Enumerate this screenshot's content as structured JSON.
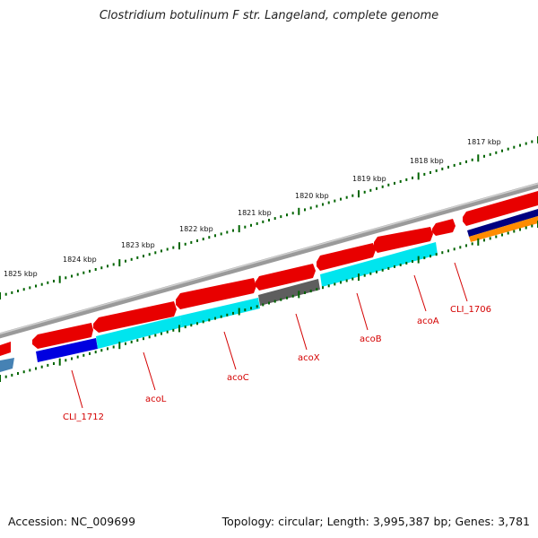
{
  "title": "Clostridium botulinum F str. Langeland, complete genome",
  "footer": {
    "accession_label": "Accession: NC_009699",
    "topology_label": "Topology: circular; Length: 3,995,387 bp; Genes: 3,781"
  },
  "colors": {
    "backbone": "#8a8a8a",
    "forward_gene": "#e80000",
    "reverse_cyan": "#00e5ee",
    "reverse_blue": "#0000e0",
    "reverse_gray": "#5e5e5e",
    "reverse_navy": "#000080",
    "reverse_orange": "#ff8c00",
    "reverse_steel": "#4682b4",
    "tick": "#006400",
    "gene_label": "#d40000"
  },
  "kbp_labels": [
    "1825 kbp",
    "1824 kbp",
    "1823 kbp",
    "1822 kbp",
    "1821 kbp",
    "1820 kbp",
    "1819 kbp",
    "1818 kbp",
    "1817 kbp"
  ],
  "gene_labels": [
    "CLI_1712",
    "acoL",
    "acoC",
    "acoX",
    "acoB",
    "acoA",
    "CLI_1706"
  ]
}
